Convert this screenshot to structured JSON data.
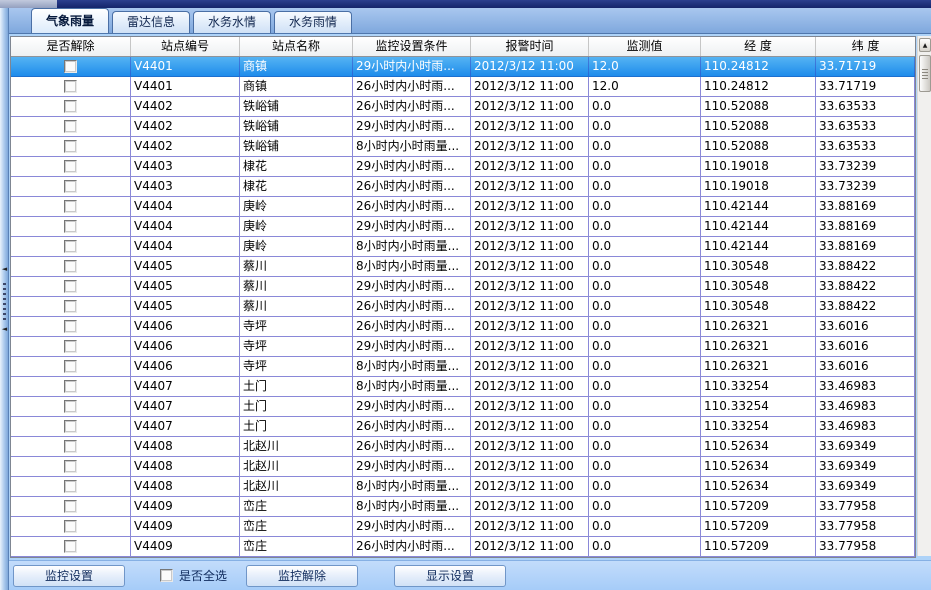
{
  "tabs": [
    {
      "label": "气象雨量",
      "active": true
    },
    {
      "label": "雷达信息",
      "active": false
    },
    {
      "label": "水务水情",
      "active": false
    },
    {
      "label": "水务雨情",
      "active": false
    }
  ],
  "table": {
    "columns": [
      "是否解除",
      "站点编号",
      "站点名称",
      "监控设置条件",
      "报警时间",
      "监测值",
      "经 度",
      "纬 度"
    ],
    "rows": [
      {
        "checked": false,
        "station_id": "V4401",
        "station_name": "商镇",
        "condition": "29小时内小时雨...",
        "alarm_time": "2012/3/12 11:00",
        "value": "12.0",
        "longitude": "110.24812",
        "latitude": "33.71719",
        "selected": true
      },
      {
        "checked": false,
        "station_id": "V4401",
        "station_name": "商镇",
        "condition": "26小时内小时雨...",
        "alarm_time": "2012/3/12 11:00",
        "value": "12.0",
        "longitude": "110.24812",
        "latitude": "33.71719",
        "selected": false
      },
      {
        "checked": false,
        "station_id": "V4402",
        "station_name": "铁峪铺",
        "condition": "26小时内小时雨...",
        "alarm_time": "2012/3/12 11:00",
        "value": "0.0",
        "longitude": "110.52088",
        "latitude": "33.63533",
        "selected": false
      },
      {
        "checked": false,
        "station_id": "V4402",
        "station_name": "铁峪铺",
        "condition": "29小时内小时雨...",
        "alarm_time": "2012/3/12 11:00",
        "value": "0.0",
        "longitude": "110.52088",
        "latitude": "33.63533",
        "selected": false
      },
      {
        "checked": false,
        "station_id": "V4402",
        "station_name": "铁峪铺",
        "condition": "8小时内小时雨量...",
        "alarm_time": "2012/3/12 11:00",
        "value": "0.0",
        "longitude": "110.52088",
        "latitude": "33.63533",
        "selected": false
      },
      {
        "checked": false,
        "station_id": "V4403",
        "station_name": "棣花",
        "condition": "29小时内小时雨...",
        "alarm_time": "2012/3/12 11:00",
        "value": "0.0",
        "longitude": "110.19018",
        "latitude": "33.73239",
        "selected": false
      },
      {
        "checked": false,
        "station_id": "V4403",
        "station_name": "棣花",
        "condition": "26小时内小时雨...",
        "alarm_time": "2012/3/12 11:00",
        "value": "0.0",
        "longitude": "110.19018",
        "latitude": "33.73239",
        "selected": false
      },
      {
        "checked": false,
        "station_id": "V4404",
        "station_name": "庚岭",
        "condition": "26小时内小时雨...",
        "alarm_time": "2012/3/12 11:00",
        "value": "0.0",
        "longitude": "110.42144",
        "latitude": "33.88169",
        "selected": false
      },
      {
        "checked": false,
        "station_id": "V4404",
        "station_name": "庚岭",
        "condition": "29小时内小时雨...",
        "alarm_time": "2012/3/12 11:00",
        "value": "0.0",
        "longitude": "110.42144",
        "latitude": "33.88169",
        "selected": false
      },
      {
        "checked": false,
        "station_id": "V4404",
        "station_name": "庚岭",
        "condition": "8小时内小时雨量...",
        "alarm_time": "2012/3/12 11:00",
        "value": "0.0",
        "longitude": "110.42144",
        "latitude": "33.88169",
        "selected": false
      },
      {
        "checked": false,
        "station_id": "V4405",
        "station_name": "蔡川",
        "condition": "8小时内小时雨量...",
        "alarm_time": "2012/3/12 11:00",
        "value": "0.0",
        "longitude": "110.30548",
        "latitude": "33.88422",
        "selected": false
      },
      {
        "checked": false,
        "station_id": "V4405",
        "station_name": "蔡川",
        "condition": "29小时内小时雨...",
        "alarm_time": "2012/3/12 11:00",
        "value": "0.0",
        "longitude": "110.30548",
        "latitude": "33.88422",
        "selected": false
      },
      {
        "checked": false,
        "station_id": "V4405",
        "station_name": "蔡川",
        "condition": "26小时内小时雨...",
        "alarm_time": "2012/3/12 11:00",
        "value": "0.0",
        "longitude": "110.30548",
        "latitude": "33.88422",
        "selected": false
      },
      {
        "checked": false,
        "station_id": "V4406",
        "station_name": "寺坪",
        "condition": "26小时内小时雨...",
        "alarm_time": "2012/3/12 11:00",
        "value": "0.0",
        "longitude": "110.26321",
        "latitude": "33.6016",
        "selected": false
      },
      {
        "checked": false,
        "station_id": "V4406",
        "station_name": "寺坪",
        "condition": "29小时内小时雨...",
        "alarm_time": "2012/3/12 11:00",
        "value": "0.0",
        "longitude": "110.26321",
        "latitude": "33.6016",
        "selected": false
      },
      {
        "checked": false,
        "station_id": "V4406",
        "station_name": "寺坪",
        "condition": "8小时内小时雨量...",
        "alarm_time": "2012/3/12 11:00",
        "value": "0.0",
        "longitude": "110.26321",
        "latitude": "33.6016",
        "selected": false
      },
      {
        "checked": false,
        "station_id": "V4407",
        "station_name": "土门",
        "condition": "8小时内小时雨量...",
        "alarm_time": "2012/3/12 11:00",
        "value": "0.0",
        "longitude": "110.33254",
        "latitude": "33.46983",
        "selected": false
      },
      {
        "checked": false,
        "station_id": "V4407",
        "station_name": "土门",
        "condition": "29小时内小时雨...",
        "alarm_time": "2012/3/12 11:00",
        "value": "0.0",
        "longitude": "110.33254",
        "latitude": "33.46983",
        "selected": false
      },
      {
        "checked": false,
        "station_id": "V4407",
        "station_name": "土门",
        "condition": "26小时内小时雨...",
        "alarm_time": "2012/3/12 11:00",
        "value": "0.0",
        "longitude": "110.33254",
        "latitude": "33.46983",
        "selected": false
      },
      {
        "checked": false,
        "station_id": "V4408",
        "station_name": "北赵川",
        "condition": "26小时内小时雨...",
        "alarm_time": "2012/3/12 11:00",
        "value": "0.0",
        "longitude": "110.52634",
        "latitude": "33.69349",
        "selected": false
      },
      {
        "checked": false,
        "station_id": "V4408",
        "station_name": "北赵川",
        "condition": "29小时内小时雨...",
        "alarm_time": "2012/3/12 11:00",
        "value": "0.0",
        "longitude": "110.52634",
        "latitude": "33.69349",
        "selected": false
      },
      {
        "checked": false,
        "station_id": "V4408",
        "station_name": "北赵川",
        "condition": "8小时内小时雨量...",
        "alarm_time": "2012/3/12 11:00",
        "value": "0.0",
        "longitude": "110.52634",
        "latitude": "33.69349",
        "selected": false
      },
      {
        "checked": false,
        "station_id": "V4409",
        "station_name": "峦庄",
        "condition": "8小时内小时雨量...",
        "alarm_time": "2012/3/12 11:00",
        "value": "0.0",
        "longitude": "110.57209",
        "latitude": "33.77958",
        "selected": false
      },
      {
        "checked": false,
        "station_id": "V4409",
        "station_name": "峦庄",
        "condition": "29小时内小时雨...",
        "alarm_time": "2012/3/12 11:00",
        "value": "0.0",
        "longitude": "110.57209",
        "latitude": "33.77958",
        "selected": false
      },
      {
        "checked": false,
        "station_id": "V4409",
        "station_name": "峦庄",
        "condition": "26小时内小时雨...",
        "alarm_time": "2012/3/12 11:00",
        "value": "0.0",
        "longitude": "110.57209",
        "latitude": "33.77958",
        "selected": false
      }
    ]
  },
  "footer": {
    "monitor_settings_label": "监控设置",
    "select_all_label": "是否全选",
    "select_all_checked": false,
    "monitor_release_label": "监控解除",
    "display_settings_label": "显示设置"
  },
  "colors": {
    "selection_blue": "#2e9bf0",
    "grid_line_purple": "#8a88d8",
    "footer_bg": "#aed2fa",
    "tabbar_bg": "#7fa8dd",
    "top_strip_navy": "#14246a"
  }
}
